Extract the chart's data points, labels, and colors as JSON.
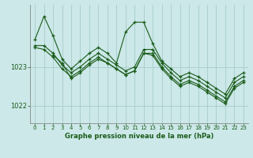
{
  "title": "Graphe pression niveau de la mer (hPa)",
  "bg_color": "#cce8e8",
  "plot_bg_color": "#cce8e8",
  "line_color": "#1a5c1a",
  "grid_color": "#a8cccc",
  "xlim": [
    -0.5,
    23.5
  ],
  "ylim": [
    1021.55,
    1024.6
  ],
  "yticks": [
    1022,
    1023
  ],
  "xticks": [
    0,
    1,
    2,
    3,
    4,
    5,
    6,
    7,
    8,
    9,
    10,
    11,
    12,
    13,
    14,
    15,
    16,
    17,
    18,
    19,
    20,
    21,
    22,
    23
  ],
  "series": [
    {
      "x": [
        0,
        1,
        2,
        3,
        4,
        5,
        6,
        7,
        8,
        9,
        10,
        11,
        12,
        13,
        14,
        15,
        16,
        17,
        18,
        19,
        20,
        21,
        22,
        23
      ],
      "y": [
        1023.7,
        1024.3,
        1023.8,
        1023.2,
        1022.95,
        1023.15,
        1023.35,
        1023.5,
        1023.35,
        1023.1,
        1023.9,
        1024.15,
        1024.15,
        1023.6,
        1023.15,
        1022.95,
        1022.75,
        1022.85,
        1022.75,
        1022.6,
        1022.45,
        1022.3,
        1022.7,
        1022.85
      ]
    },
    {
      "x": [
        0,
        1,
        2,
        3,
        4,
        5,
        6,
        7,
        8,
        9,
        10,
        11,
        12,
        13,
        14,
        15,
        16,
        17,
        18,
        19,
        20,
        21,
        22,
        23
      ],
      "y": [
        1023.55,
        1023.55,
        1023.35,
        1023.05,
        1022.85,
        1023.0,
        1023.2,
        1023.35,
        1023.2,
        1023.05,
        1022.9,
        1023.0,
        1023.45,
        1023.45,
        1023.1,
        1022.85,
        1022.65,
        1022.75,
        1022.65,
        1022.5,
        1022.35,
        1022.2,
        1022.6,
        1022.75
      ]
    },
    {
      "x": [
        0,
        1,
        2,
        3,
        4,
        5,
        6,
        7,
        8,
        9,
        10,
        11,
        12,
        13,
        14,
        15,
        16,
        17,
        18,
        19,
        20,
        21,
        22,
        23
      ],
      "y": [
        1023.5,
        1023.45,
        1023.25,
        1022.95,
        1022.75,
        1022.9,
        1023.1,
        1023.25,
        1023.1,
        1022.95,
        1022.8,
        1022.9,
        1023.35,
        1023.35,
        1023.0,
        1022.75,
        1022.55,
        1022.65,
        1022.55,
        1022.4,
        1022.25,
        1022.1,
        1022.5,
        1022.65
      ]
    },
    {
      "x": [
        2,
        3,
        4,
        5,
        6,
        7,
        8,
        9,
        10,
        11,
        12,
        13,
        14,
        15,
        16,
        17,
        18,
        19,
        20,
        21,
        22,
        23
      ],
      "y": [
        1023.3,
        1023.1,
        1022.7,
        1022.85,
        1023.05,
        1023.2,
        1023.1,
        1022.95,
        1022.8,
        1022.9,
        1023.35,
        1023.3,
        1022.95,
        1022.7,
        1022.5,
        1022.6,
        1022.5,
        1022.35,
        1022.2,
        1022.05,
        1022.45,
        1022.6
      ]
    }
  ]
}
